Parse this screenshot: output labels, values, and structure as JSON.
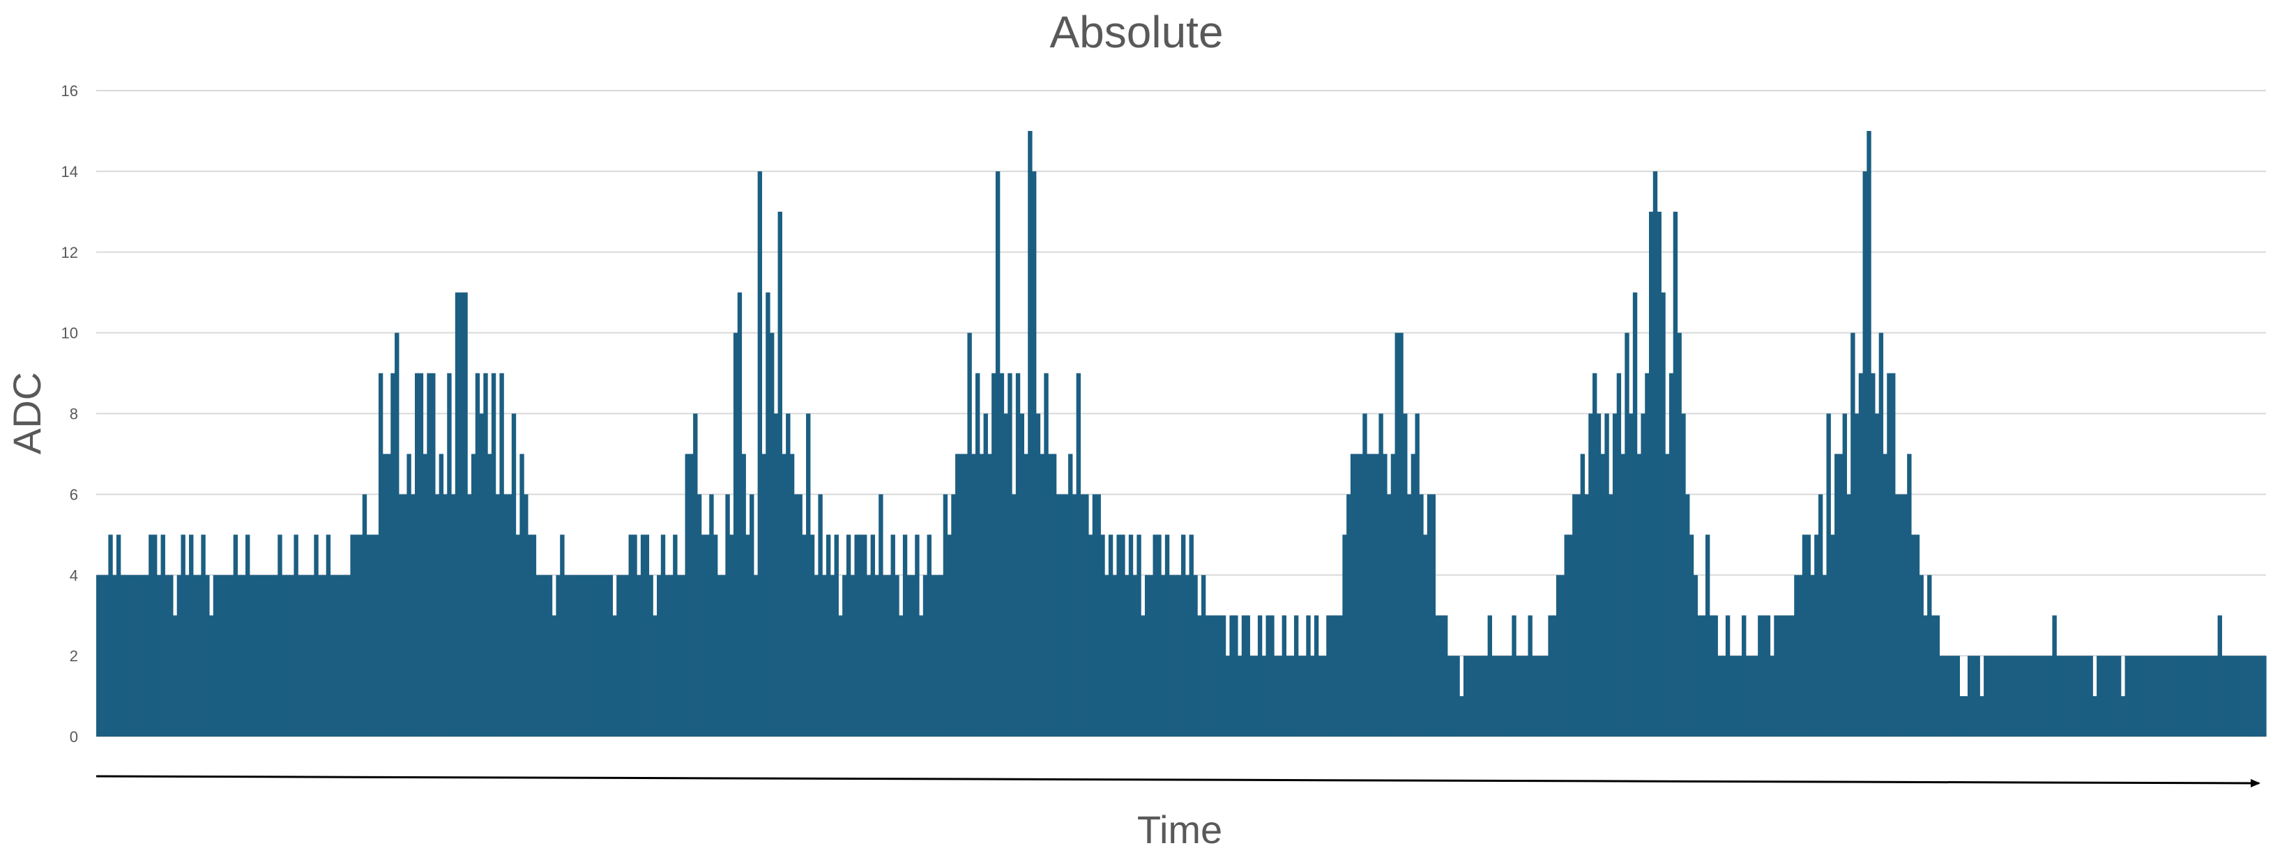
{
  "chart_data": {
    "type": "bar",
    "title": "Absolute",
    "xlabel": "Time",
    "ylabel": "ADC",
    "ylim": [
      0,
      16
    ],
    "yticks": [
      "0",
      "2",
      "4",
      "6",
      "8",
      "10",
      "12",
      "14",
      "16"
    ],
    "grid": true,
    "legend": "none",
    "series": [
      {
        "color": "#1b5e82",
        "values": [
          4,
          4,
          4,
          5,
          4,
          5,
          4,
          4,
          4,
          4,
          4,
          4,
          4,
          5,
          5,
          4,
          5,
          4,
          4,
          3,
          4,
          5,
          4,
          5,
          4,
          4,
          5,
          4,
          3,
          4,
          4,
          4,
          4,
          4,
          5,
          4,
          4,
          5,
          4,
          4,
          4,
          4,
          4,
          4,
          4,
          5,
          4,
          4,
          4,
          5,
          4,
          4,
          4,
          4,
          5,
          4,
          4,
          5,
          4,
          4,
          4,
          4,
          4,
          5,
          5,
          5,
          6,
          5,
          5,
          5,
          9,
          7,
          7,
          9,
          10,
          6,
          6,
          7,
          6,
          9,
          9,
          7,
          9,
          9,
          6,
          7,
          6,
          9,
          6,
          11,
          11,
          11,
          6,
          7,
          9,
          8,
          9,
          7,
          9,
          6,
          9,
          6,
          6,
          8,
          5,
          7,
          6,
          5,
          5,
          4,
          4,
          4,
          4,
          3,
          4,
          5,
          4,
          4,
          4,
          4,
          4,
          4,
          4,
          4,
          4,
          4,
          4,
          4,
          3,
          4,
          4,
          4,
          5,
          5,
          4,
          5,
          5,
          4,
          3,
          4,
          5,
          4,
          4,
          5,
          4,
          4,
          7,
          7,
          8,
          6,
          5,
          5,
          6,
          5,
          4,
          4,
          6,
          5,
          10,
          11,
          7,
          5,
          6,
          4,
          14,
          7,
          11,
          10,
          8,
          13,
          7,
          8,
          7,
          6,
          6,
          5,
          8,
          5,
          4,
          6,
          4,
          5,
          4,
          5,
          3,
          4,
          5,
          4,
          5,
          5,
          5,
          4,
          5,
          4,
          6,
          4,
          4,
          5,
          4,
          3,
          5,
          4,
          4,
          5,
          3,
          4,
          5,
          4,
          4,
          4,
          6,
          5,
          6,
          7,
          7,
          7,
          10,
          7,
          9,
          7,
          8,
          7,
          9,
          14,
          9,
          8,
          9,
          6,
          9,
          8,
          7,
          15,
          14,
          8,
          7,
          9,
          7,
          7,
          6,
          6,
          6,
          7,
          6,
          9,
          6,
          6,
          5,
          6,
          6,
          5,
          4,
          5,
          4,
          5,
          5,
          4,
          5,
          4,
          5,
          3,
          4,
          4,
          5,
          5,
          4,
          5,
          4,
          4,
          4,
          5,
          4,
          5,
          4,
          3,
          4,
          3,
          3,
          3,
          3,
          3,
          2,
          3,
          3,
          2,
          3,
          3,
          2,
          2,
          3,
          2,
          3,
          3,
          2,
          2,
          3,
          2,
          2,
          3,
          2,
          2,
          3,
          2,
          3,
          2,
          2,
          3,
          3,
          3,
          3,
          5,
          6,
          7,
          7,
          7,
          8,
          7,
          7,
          7,
          8,
          7,
          6,
          7,
          10,
          10,
          8,
          6,
          7,
          8,
          6,
          5,
          6,
          6,
          3,
          3,
          3,
          2,
          2,
          2,
          1,
          2,
          2,
          2,
          2,
          2,
          2,
          3,
          2,
          2,
          2,
          2,
          2,
          3,
          2,
          2,
          2,
          3,
          2,
          2,
          2,
          2,
          3,
          3,
          4,
          4,
          5,
          5,
          6,
          6,
          7,
          6,
          8,
          9,
          8,
          7,
          8,
          6,
          8,
          9,
          7,
          10,
          8,
          11,
          7,
          8,
          9,
          13,
          14,
          13,
          11,
          7,
          9,
          13,
          10,
          8,
          6,
          5,
          4,
          3,
          3,
          5,
          3,
          3,
          2,
          2,
          3,
          2,
          2,
          2,
          3,
          2,
          2,
          2,
          3,
          3,
          3,
          2,
          3,
          3,
          3,
          3,
          3,
          4,
          4,
          5,
          5,
          4,
          5,
          6,
          4,
          8,
          5,
          7,
          7,
          8,
          6,
          10,
          8,
          9,
          14,
          15,
          9,
          8,
          10,
          7,
          9,
          9,
          6,
          6,
          6,
          7,
          5,
          5,
          4,
          3,
          4,
          3,
          3,
          2,
          2,
          2,
          2,
          2,
          1,
          1,
          2,
          2,
          2,
          1,
          2,
          2,
          2,
          2,
          2,
          2,
          2,
          2,
          2,
          2,
          2,
          2,
          2,
          2,
          2,
          2,
          2,
          3,
          2,
          2,
          2,
          2,
          2,
          2,
          2,
          2,
          2,
          1,
          2,
          2,
          2,
          2,
          2,
          2,
          1,
          2,
          2,
          2,
          2,
          2,
          2,
          2,
          2,
          2,
          2,
          2,
          2,
          2,
          2,
          2,
          2,
          2,
          2,
          2,
          2,
          2,
          2,
          2,
          3,
          2,
          2,
          2,
          2,
          2,
          2,
          2,
          2,
          2,
          2,
          2
        ]
      }
    ]
  }
}
